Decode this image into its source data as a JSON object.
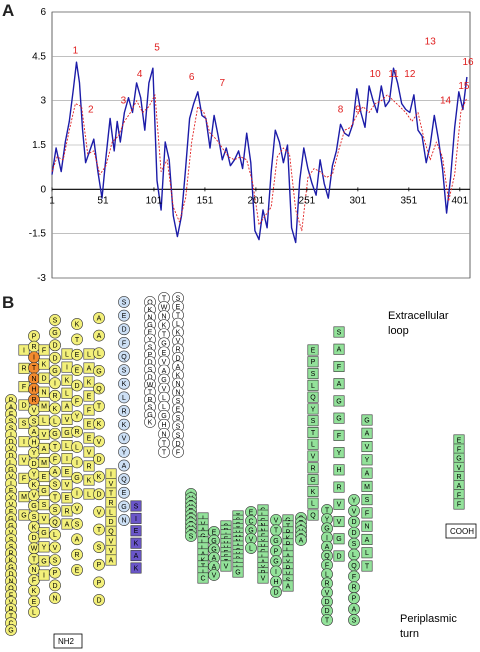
{
  "panel_a": {
    "letter": "A",
    "chart_data": {
      "type": "line",
      "xlim": [
        1,
        411
      ],
      "ylim": [
        -3,
        6
      ],
      "xticks": [
        "1",
        "51",
        "101",
        "151",
        "201",
        "251",
        "301",
        "351",
        "401"
      ],
      "yticks": [
        "-3",
        "-1.5",
        "0",
        "1.5",
        "3",
        "4.5",
        "6"
      ],
      "xtick_values": [
        1,
        51,
        101,
        151,
        201,
        251,
        301,
        351,
        401
      ],
      "ytick_values": [
        -3,
        -1.5,
        0,
        1.5,
        3,
        4.5,
        6
      ],
      "grid": true,
      "series": [
        {
          "style": "solid",
          "color": "#1c1ca8",
          "x": [
            1,
            5,
            10,
            14,
            18,
            22,
            25,
            28,
            31,
            34,
            38,
            42,
            46,
            50,
            54,
            58,
            62,
            65,
            68,
            72,
            76,
            80,
            84,
            88,
            92,
            96,
            100,
            104,
            108,
            112,
            116,
            120,
            124,
            128,
            132,
            136,
            140,
            144,
            148,
            152,
            156,
            160,
            164,
            168,
            172,
            176,
            180,
            184,
            188,
            192,
            196,
            200,
            204,
            208,
            212,
            216,
            220,
            224,
            228,
            232,
            236,
            240,
            244,
            248,
            252,
            256,
            260,
            264,
            268,
            272,
            276,
            280,
            284,
            288,
            292,
            296,
            300,
            304,
            308,
            312,
            316,
            320,
            324,
            328,
            332,
            336,
            340,
            344,
            348,
            352,
            356,
            360,
            364,
            368,
            372,
            376,
            380,
            384,
            388,
            392,
            396,
            400,
            404,
            408
          ],
          "y": [
            0.5,
            1.4,
            0.6,
            1.6,
            2.3,
            3.4,
            4.3,
            3.6,
            2.0,
            0.9,
            1.3,
            1.7,
            0.6,
            -0.3,
            1.1,
            2.4,
            1.3,
            2.3,
            1.6,
            2.6,
            3.1,
            2.6,
            3.6,
            3.1,
            2.0,
            3.6,
            4.1,
            0.3,
            -0.7,
            1.6,
            1.0,
            -0.9,
            -1.6,
            -0.9,
            0.7,
            2.4,
            2.9,
            3.3,
            2.5,
            2.4,
            1.4,
            2.5,
            1.8,
            1.0,
            1.4,
            0.8,
            1.0,
            1.3,
            0.7,
            1.9,
            0.9,
            -1.4,
            -1.7,
            -0.7,
            -1.3,
            0.6,
            2.0,
            1.6,
            0.9,
            1.5,
            -1.3,
            -1.8,
            0.3,
            1.4,
            0.7,
            0.2,
            -0.2,
            1.0,
            0.2,
            -0.3,
            0.8,
            1.3,
            2.2,
            1.9,
            1.8,
            2.2,
            3.4,
            2.6,
            2.1,
            3.5,
            3.0,
            2.6,
            3.5,
            2.8,
            3.0,
            4.1,
            3.6,
            2.9,
            2.7,
            2.6,
            3.2,
            2.0,
            1.8,
            0.9,
            1.5,
            2.5,
            1.7,
            0.7,
            -0.8,
            0.4,
            2.1,
            3.3,
            2.7,
            3.8
          ]
        },
        {
          "style": "dashed",
          "color": "#e02020",
          "x": [
            1,
            6,
            12,
            18,
            24,
            30,
            36,
            42,
            48,
            54,
            60,
            66,
            72,
            78,
            84,
            90,
            96,
            102,
            108,
            114,
            120,
            126,
            132,
            138,
            144,
            150,
            156,
            162,
            168,
            174,
            180,
            186,
            192,
            198,
            204,
            210,
            216,
            222,
            228,
            234,
            240,
            246,
            252,
            258,
            264,
            270,
            276,
            282,
            288,
            294,
            300,
            306,
            312,
            318,
            324,
            330,
            336,
            342,
            348,
            354,
            360,
            366,
            372,
            378,
            384,
            390,
            396,
            402,
            408
          ],
          "y": [
            0.6,
            1.1,
            1.0,
            2.0,
            2.9,
            2.8,
            1.2,
            1.3,
            0.5,
            0.8,
            1.6,
            1.8,
            2.3,
            2.6,
            3.0,
            2.6,
            2.8,
            3.2,
            0.6,
            1.0,
            -0.6,
            -1.1,
            -0.3,
            1.6,
            2.8,
            2.6,
            1.9,
            1.7,
            1.4,
            1.1,
            1.0,
            1.1,
            1.0,
            0.2,
            -1.2,
            -0.9,
            -0.6,
            1.1,
            1.4,
            1.2,
            -0.7,
            -1.4,
            0.4,
            0.7,
            0.6,
            0.4,
            0.5,
            1.3,
            2.0,
            2.1,
            2.5,
            2.8,
            2.6,
            2.9,
            3.0,
            3.2,
            3.0,
            2.8,
            2.6,
            2.3,
            2.6,
            1.7,
            1.0,
            1.6,
            1.1,
            -0.4,
            0.5,
            2.6,
            3.1
          ]
        }
      ],
      "annotations": [
        {
          "text": "1",
          "x": 24,
          "y": 4.6
        },
        {
          "text": "2",
          "x": 39,
          "y": 2.6
        },
        {
          "text": "3",
          "x": 71,
          "y": 2.9
        },
        {
          "text": "4",
          "x": 87,
          "y": 3.8
        },
        {
          "text": "5",
          "x": 104,
          "y": 4.7
        },
        {
          "text": "6",
          "x": 138,
          "y": 3.7
        },
        {
          "text": "7",
          "x": 168,
          "y": 3.5
        },
        {
          "text": "8",
          "x": 284,
          "y": 2.6
        },
        {
          "text": "9",
          "x": 301,
          "y": 2.6
        },
        {
          "text": "10",
          "x": 318,
          "y": 3.8
        },
        {
          "text": "11",
          "x": 336,
          "y": 3.8
        },
        {
          "text": "12",
          "x": 352,
          "y": 3.8
        },
        {
          "text": "13",
          "x": 372,
          "y": 4.9
        },
        {
          "text": "14",
          "x": 387,
          "y": 2.9
        },
        {
          "text": "15",
          "x": 405,
          "y": 3.4
        },
        {
          "text": "16",
          "x": 419,
          "y": 4.2
        }
      ]
    }
  },
  "panel_b": {
    "letter": "B",
    "labels": {
      "extracellular_1": "Extracellular",
      "extracellular_2": "loop",
      "periplasmic_1": "Periplasmic",
      "periplasmic_2": "turn",
      "nh2": "NH2",
      "cooh": "COOH"
    },
    "colors": {
      "yellow": "#f3f07a",
      "green": "#93e29a",
      "lightblue": "#cde0f5",
      "white": "#ffffff",
      "orange": "#f28a2e",
      "purple": "#6a56c8"
    },
    "columns": [
      {
        "mode": "circle",
        "fill": "yellow",
        "seq": "PAFSSIDVDLGVIFYVFGGVSSRKGDNQFVRTCG"
      },
      {
        "mode": "rect",
        "fill": "yellow",
        "seq": "IRFDSIVFMG"
      },
      {
        "mode": "circle",
        "fill": "yellow",
        "seq": "PRITNHRVSAHYDYKVGSKDWTNFKEL"
      },
      {
        "mode": "rect",
        "fill": "yellow",
        "seq": "FKDNMLVAMEGSVGYGI"
      },
      {
        "mode": "circle",
        "fill": "yellow",
        "seq": "SGDDGIRKLGTFASTSQLVSPDN"
      },
      {
        "mode": "rect",
        "fill": "yellow",
        "seq": "LIKLAVGLIEVERA"
      },
      {
        "mode": "circle",
        "fill": "yellow",
        "seq": "KTEEDFYRLIGIVSARE"
      },
      {
        "mode": "rect",
        "fill": "yellow",
        "seq": "LAKEFEEVRKL"
      },
      {
        "mode": "circle",
        "fill": "yellow",
        "seq": "AALGQTKVDKDVTSPPD"
      },
      {
        "mode": "rect",
        "fill": "yellow",
        "seq": "IVTRLDQVVA"
      },
      {
        "mode": "circle",
        "fill": "lightblue",
        "seq": "SEDFQSKLRKVYAQEGN"
      },
      {
        "mode": "rect",
        "fill": "purple",
        "seq": "SIEKAK"
      },
      {
        "mode": "circle",
        "fill": "white",
        "seq": "QKNGEYSPDSDWTRSGK"
      },
      {
        "mode": "circle",
        "fill": "white",
        "seq": "TWNKTGEVAGVLLGHNTT"
      },
      {
        "mode": "circle",
        "fill": "white",
        "seq": "SETLKVRDAKNNSESSSDF"
      },
      {
        "mode": "circle",
        "fill": "green",
        "seq": "IVTKEEPTVTS"
      },
      {
        "mode": "rect",
        "fill": "green",
        "seq": "IVAGLLAKTIC"
      },
      {
        "mode": "circle",
        "fill": "green",
        "seq": "EGGAAV"
      },
      {
        "mode": "rect",
        "fill": "green",
        "seq": "GRIEVVEETV"
      },
      {
        "mode": "rect",
        "fill": "green",
        "seq": "TSSTVMNACYDLLG"
      },
      {
        "mode": "circle",
        "fill": "green",
        "seq": "ECGVL"
      },
      {
        "mode": "rect",
        "fill": "green",
        "seq": "GLGNNFYVGLAYPV"
      },
      {
        "mode": "circle",
        "fill": "green",
        "seq": "VTGPGIHD"
      },
      {
        "mode": "rect",
        "fill": "green",
        "seq": "GTPKRLAYRVSA"
      },
      {
        "mode": "circle",
        "fill": "green",
        "seq": "GTAVSA"
      },
      {
        "mode": "rect",
        "fill": "green",
        "seq": "EPSLQYSTLVRGKLQ"
      },
      {
        "mode": "circle",
        "fill": "green",
        "seq": "TYGIAQFLRVDDT"
      },
      {
        "mode": "rect",
        "fill": "green",
        "seq": "SAFAGGFYHRVVGD"
      },
      {
        "mode": "circle",
        "fill": "green",
        "seq": "YVDDSLQFRPAS"
      },
      {
        "mode": "rect",
        "fill": "green",
        "seq": "GAVYAMSFNALT"
      },
      {
        "mode": "rect",
        "fill": "green",
        "seq": "EFGVRAFF"
      }
    ]
  }
}
